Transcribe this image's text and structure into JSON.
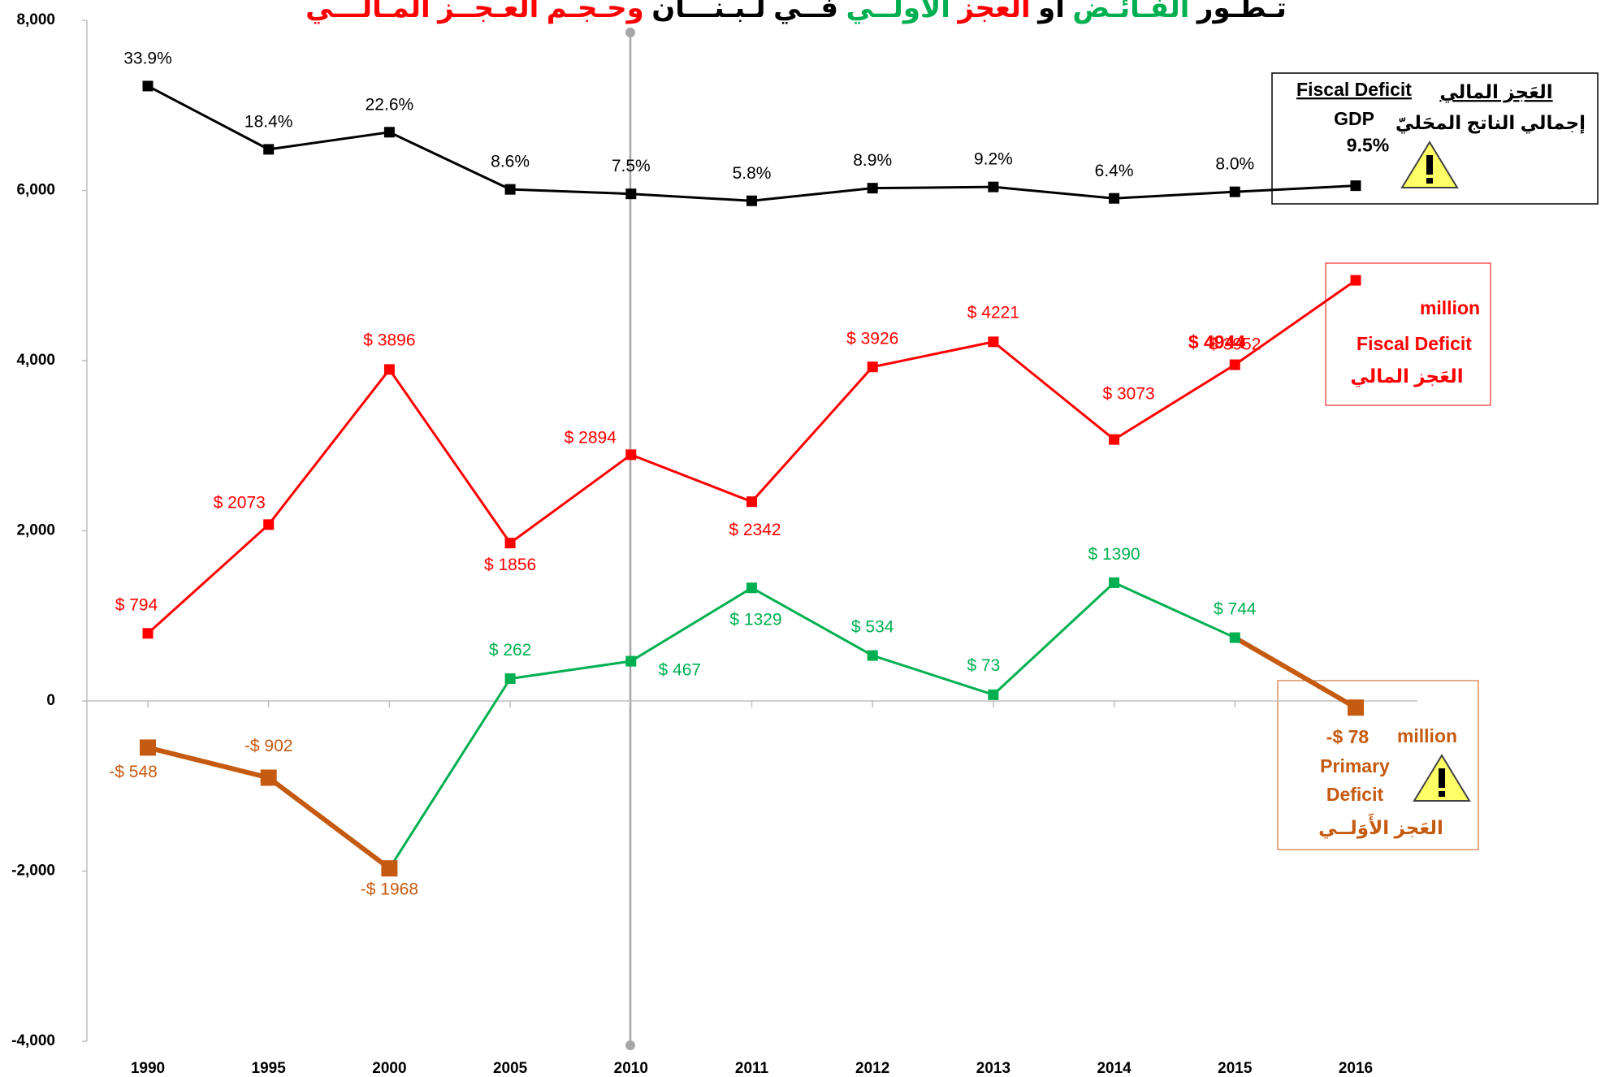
{
  "chart_data": {
    "type": "line",
    "title_parts": [
      {
        "text": "تـطـور",
        "color": "#000000"
      },
      {
        "text": "الفـائـض",
        "color": "#00b050"
      },
      {
        "text": "أو",
        "color": "#000000"
      },
      {
        "text": "العجز",
        "color": "#ff0000"
      },
      {
        "text": "الأولــي",
        "color": "#00b050"
      },
      {
        "text": "فــي لـبـنـــان",
        "color": "#000000"
      },
      {
        "text": "وحـجـم العـجــز المـالـــي",
        "color": "#ff0000"
      }
    ],
    "categories": [
      "1990",
      "1995",
      "2000",
      "2005",
      "2010",
      "2011",
      "2012",
      "2013",
      "2014",
      "2015",
      "2016"
    ],
    "ylim": [
      -4000,
      8000
    ],
    "yticks": [
      {
        "value": -4000,
        "label": "-4,000"
      },
      {
        "value": -2000,
        "label": "-2,000"
      },
      0,
      {
        "value": 2000,
        "label": "2,000"
      },
      {
        "value": 4000,
        "label": "4,000"
      },
      {
        "value": 6000,
        "label": "6,000"
      },
      {
        "value": 8000,
        "label": "8,000"
      }
    ],
    "y2lim": [
      -200,
      50
    ],
    "series": [
      {
        "name": "Fiscal Deficit / GDP",
        "color": "#000000",
        "axis": "y2",
        "values": [
          33.9,
          18.4,
          22.6,
          8.6,
          7.5,
          5.8,
          8.9,
          9.2,
          6.4,
          8.0,
          9.5
        ],
        "value_labels": [
          "33.9%",
          "18.4%",
          "22.6%",
          "8.6%",
          "7.5%",
          "5.8%",
          "8.9%",
          "9.2%",
          "6.4%",
          "8.0%",
          "9.5%"
        ]
      },
      {
        "name": "Fiscal Deficit",
        "color": "#ff0000",
        "values": [
          794,
          2073,
          3896,
          1856,
          2894,
          2342,
          3926,
          4221,
          3073,
          3952,
          4944
        ],
        "value_labels": [
          "$ 794",
          "$ 2073",
          "$ 3896",
          "$ 1856",
          "$ 2894",
          "$ 2342",
          "$ 3926",
          "$ 4221",
          "$ 3073",
          "$ 3952",
          "$ 4944"
        ]
      },
      {
        "name": "Primary Deficit",
        "color": "#00b050",
        "negative_color": "#c55a11",
        "values": [
          -548,
          -902,
          -1968,
          262,
          467,
          1329,
          534,
          73,
          1390,
          744,
          -78
        ],
        "value_labels": [
          "-$ 548",
          "-$ 902",
          "-$ 1968",
          "$ 262",
          "$ 467",
          "$ 1329",
          "$ 534",
          "$ 73",
          "$ 1390",
          "$ 744",
          "-$ 78"
        ]
      }
    ],
    "legend_box": {
      "en_top": "Fiscal Deficit",
      "en_bottom": "GDP",
      "ar_top": "العَجز المالي",
      "ar_bottom": "إجمالي الناتج المحَليّ"
    },
    "fiscal_box": {
      "unit": "million",
      "en": "Fiscal Deficit",
      "ar": "العَجز المالي"
    },
    "primary_box": {
      "unit": "million",
      "en_1": "Primary",
      "en_2": "Deficit",
      "ar": "العَجز الأَوَلــي"
    }
  }
}
